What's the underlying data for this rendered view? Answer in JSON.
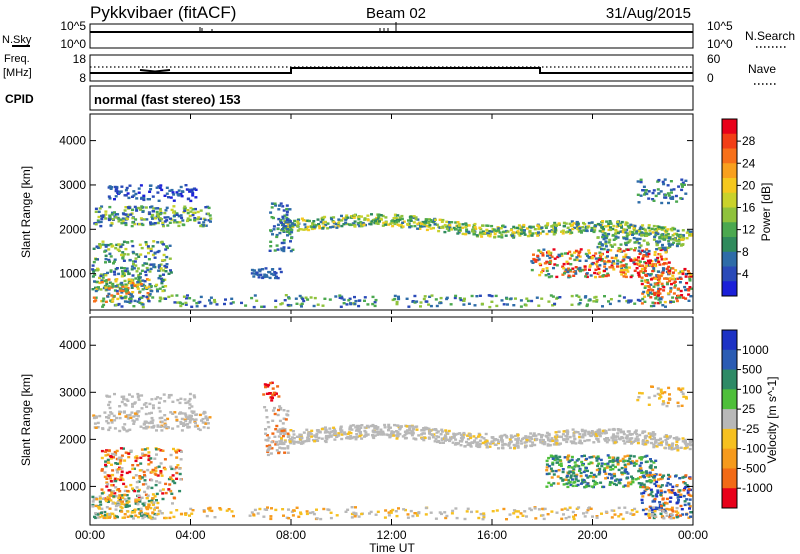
{
  "header": {
    "station": "Pykkvibaer (fitACF)",
    "beam": "Beam 02",
    "date": "31/Aug/2015"
  },
  "strips": {
    "nsky_label": "N.Sky",
    "nsearch_label": "N.Search",
    "noise_ticks": [
      "10^5",
      "10^0"
    ],
    "noise_ticks_right": [
      "10^5",
      "10^0"
    ],
    "freq_label": "Freq.",
    "freq_unit": "[MHz]",
    "freq_ticks": [
      "18",
      "8"
    ],
    "nave_label": "Nave",
    "nave_ticks": [
      "60",
      "0"
    ],
    "cpid_label": "CPID",
    "cpid_text": "normal (fast stereo) 153"
  },
  "chart_data": [
    {
      "type": "heatmap",
      "name": "power",
      "ylabel": "Slant Range [km]",
      "yticks": [
        1000,
        2000,
        3000,
        4000
      ],
      "ylim": [
        180,
        4600
      ],
      "colorbar": {
        "label": "Power [dB]",
        "ticks": [
          "28",
          "24",
          "20",
          "16",
          "12",
          "8",
          "4"
        ],
        "colors": [
          "#e8001a",
          "#f23e16",
          "#f7701a",
          "#f9a01e",
          "#f5c81e",
          "#c9d22b",
          "#8fc23c",
          "#4ba84f",
          "#2f8a5c",
          "#2e6ca8",
          "#2a4ab8",
          "#1b20d8"
        ]
      }
    },
    {
      "type": "heatmap",
      "name": "velocity",
      "ylabel": "Slant Range [km]",
      "yticks": [
        1000,
        2000,
        3000,
        4000
      ],
      "ylim": [
        180,
        4600
      ],
      "xlabel": "Time UT",
      "xticks": [
        "00:00",
        "04:00",
        "08:00",
        "12:00",
        "16:00",
        "20:00",
        "00:00"
      ],
      "colorbar": {
        "label": "Velocity [m s^-1]",
        "ticks": [
          "1000",
          "500",
          "100",
          "25",
          "-25",
          "-100",
          "-500",
          "-1000"
        ],
        "colors": [
          "#1d32c4",
          "#2b5cb3",
          "#2e8a66",
          "#4fbf3a",
          "#b8b8b8",
          "#f6c020",
          "#f69a1c",
          "#f26a16",
          "#e8001a"
        ]
      }
    }
  ]
}
